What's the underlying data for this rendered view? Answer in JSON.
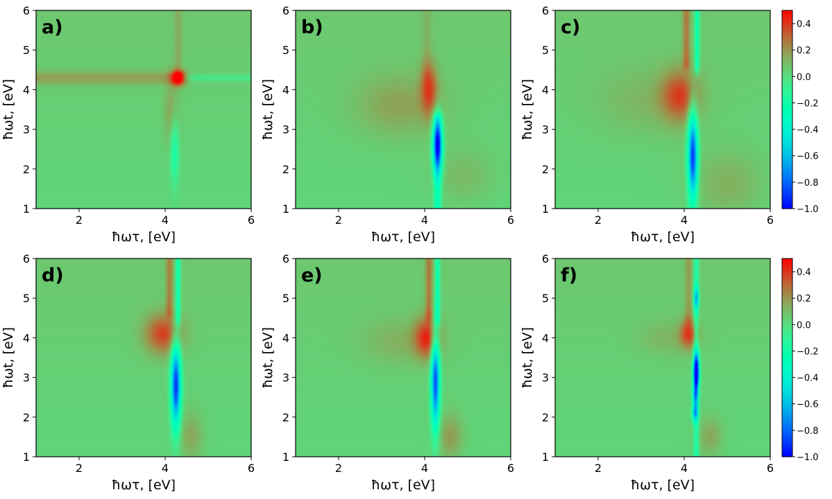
{
  "chart_data": {
    "type": "heatmap",
    "layout": "2x3 grid of 2D spectra with shared colorbars per row",
    "common": {
      "xlabel": "ħωτ, [eV]",
      "ylabel": "ħωt, [eV]",
      "xlim": [
        1,
        6
      ],
      "ylim": [
        1,
        6
      ],
      "xticks": [
        "2",
        "4",
        "6"
      ],
      "yticks": [
        "1",
        "2",
        "3",
        "4",
        "5",
        "6"
      ],
      "colormap": "rainbow"
    },
    "colorbar": {
      "vmin": -1.0,
      "vmax": 0.5,
      "ticks": [
        "0.4",
        "0.2",
        "0.0",
        "−0.2",
        "−0.4",
        "−0.6",
        "−0.8",
        "−1.0"
      ],
      "tick_values": [
        0.4,
        0.2,
        0.0,
        -0.2,
        -0.4,
        -0.6,
        -0.8,
        -1.0
      ]
    },
    "panels": [
      {
        "label": "a)",
        "features": [
          {
            "type": "peak",
            "x": 4.3,
            "y": 4.3,
            "value": 0.5,
            "sx": 0.12,
            "sy": 0.12
          },
          {
            "type": "streak",
            "axis": "h",
            "y": 4.3,
            "x_from": 1.0,
            "x_to": 4.3,
            "value": 0.12,
            "s": 0.12
          },
          {
            "type": "streak",
            "axis": "v",
            "x": 4.3,
            "y_from": 4.3,
            "y_to": 6.0,
            "value": 0.08,
            "s": 0.07
          },
          {
            "type": "streak",
            "axis": "h",
            "y": 4.3,
            "x_from": 4.3,
            "x_to": 6.0,
            "value": -0.1,
            "s": 0.06
          },
          {
            "type": "peak",
            "x": 4.15,
            "y": 3.4,
            "value": 0.12,
            "sx": 0.12,
            "sy": 0.6
          },
          {
            "type": "peak",
            "x": 4.22,
            "y": 2.5,
            "value": -0.25,
            "sx": 0.07,
            "sy": 0.6
          }
        ]
      },
      {
        "label": "b)",
        "features": [
          {
            "type": "peak",
            "x": 4.1,
            "y": 4.0,
            "value": 0.3,
            "sx": 0.14,
            "sy": 0.45
          },
          {
            "type": "peak",
            "x": 3.4,
            "y": 3.6,
            "value": 0.12,
            "sx": 0.7,
            "sy": 0.55
          },
          {
            "type": "peak",
            "x": 4.3,
            "y": 2.6,
            "value": -0.85,
            "sx": 0.08,
            "sy": 0.5
          },
          {
            "type": "streak",
            "axis": "v",
            "x": 4.3,
            "y_from": 1.0,
            "y_to": 3.2,
            "value": -0.3,
            "s": 0.06
          },
          {
            "type": "streak",
            "axis": "v",
            "x": 4.05,
            "y_from": 4.4,
            "y_to": 6.0,
            "value": 0.06,
            "s": 0.08
          },
          {
            "type": "peak",
            "x": 4.9,
            "y": 1.8,
            "value": 0.07,
            "sx": 0.5,
            "sy": 0.5
          }
        ]
      },
      {
        "label": "c)",
        "features": [
          {
            "type": "peak",
            "x": 3.9,
            "y": 3.85,
            "value": 0.3,
            "sx": 0.3,
            "sy": 0.45
          },
          {
            "type": "peak",
            "x": 3.1,
            "y": 3.7,
            "value": 0.07,
            "sx": 0.8,
            "sy": 0.6
          },
          {
            "type": "peak",
            "x": 4.2,
            "y": 2.3,
            "value": -0.95,
            "sx": 0.08,
            "sy": 0.8
          },
          {
            "type": "streak",
            "axis": "v",
            "x": 4.3,
            "y_from": 4.6,
            "y_to": 6.0,
            "value": -0.3,
            "s": 0.04
          },
          {
            "type": "streak",
            "axis": "v",
            "x": 4.05,
            "y_from": 4.7,
            "y_to": 6.0,
            "value": 0.2,
            "s": 0.06
          },
          {
            "type": "peak",
            "x": 5.0,
            "y": 1.6,
            "value": 0.1,
            "sx": 0.6,
            "sy": 0.6
          }
        ]
      },
      {
        "label": "d)",
        "features": [
          {
            "type": "peak",
            "x": 3.95,
            "y": 4.1,
            "value": 0.32,
            "sx": 0.3,
            "sy": 0.35
          },
          {
            "type": "peak",
            "x": 4.25,
            "y": 2.8,
            "value": -0.95,
            "sx": 0.08,
            "sy": 0.75
          },
          {
            "type": "streak",
            "axis": "v",
            "x": 4.3,
            "y_from": 4.5,
            "y_to": 6.0,
            "value": -0.3,
            "s": 0.04
          },
          {
            "type": "streak",
            "axis": "v",
            "x": 4.1,
            "y_from": 4.7,
            "y_to": 6.0,
            "value": 0.18,
            "s": 0.06
          },
          {
            "type": "peak",
            "x": 4.6,
            "y": 1.5,
            "value": 0.12,
            "sx": 0.2,
            "sy": 0.45
          }
        ]
      },
      {
        "label": "e)",
        "features": [
          {
            "type": "peak",
            "x": 4.05,
            "y": 4.0,
            "value": 0.35,
            "sx": 0.2,
            "sy": 0.35
          },
          {
            "type": "peak",
            "x": 3.4,
            "y": 3.9,
            "value": 0.08,
            "sx": 0.6,
            "sy": 0.4
          },
          {
            "type": "peak",
            "x": 4.25,
            "y": 2.9,
            "value": -0.9,
            "sx": 0.07,
            "sy": 0.85
          },
          {
            "type": "streak",
            "axis": "v",
            "x": 4.3,
            "y_from": 4.5,
            "y_to": 6.0,
            "value": -0.3,
            "s": 0.04
          },
          {
            "type": "streak",
            "axis": "v",
            "x": 4.1,
            "y_from": 4.6,
            "y_to": 6.0,
            "value": 0.2,
            "s": 0.06
          },
          {
            "type": "peak",
            "x": 4.6,
            "y": 1.5,
            "value": 0.15,
            "sx": 0.2,
            "sy": 0.4
          }
        ]
      },
      {
        "label": "f)",
        "features": [
          {
            "type": "peak",
            "x": 4.1,
            "y": 4.1,
            "value": 0.32,
            "sx": 0.14,
            "sy": 0.25
          },
          {
            "type": "peak",
            "x": 3.6,
            "y": 4.0,
            "value": 0.07,
            "sx": 0.45,
            "sy": 0.3
          },
          {
            "type": "peak",
            "x": 4.28,
            "y": 3.35,
            "value": -0.7,
            "sx": 0.05,
            "sy": 0.25
          },
          {
            "type": "peak",
            "x": 4.28,
            "y": 3.0,
            "value": -0.75,
            "sx": 0.05,
            "sy": 0.2
          },
          {
            "type": "peak",
            "x": 4.26,
            "y": 2.55,
            "value": -0.6,
            "sx": 0.05,
            "sy": 0.2
          },
          {
            "type": "peak",
            "x": 4.25,
            "y": 2.1,
            "value": -0.55,
            "sx": 0.05,
            "sy": 0.15
          },
          {
            "type": "peak",
            "x": 4.28,
            "y": 5.0,
            "value": -0.5,
            "sx": 0.04,
            "sy": 0.2
          },
          {
            "type": "streak",
            "axis": "v",
            "x": 4.28,
            "y_from": 1.0,
            "y_to": 6.0,
            "value": -0.25,
            "s": 0.04
          },
          {
            "type": "streak",
            "axis": "v",
            "x": 4.1,
            "y_from": 4.5,
            "y_to": 6.0,
            "value": 0.12,
            "s": 0.06
          },
          {
            "type": "peak",
            "x": 4.6,
            "y": 1.5,
            "value": 0.12,
            "sx": 0.2,
            "sy": 0.35
          }
        ]
      }
    ]
  }
}
